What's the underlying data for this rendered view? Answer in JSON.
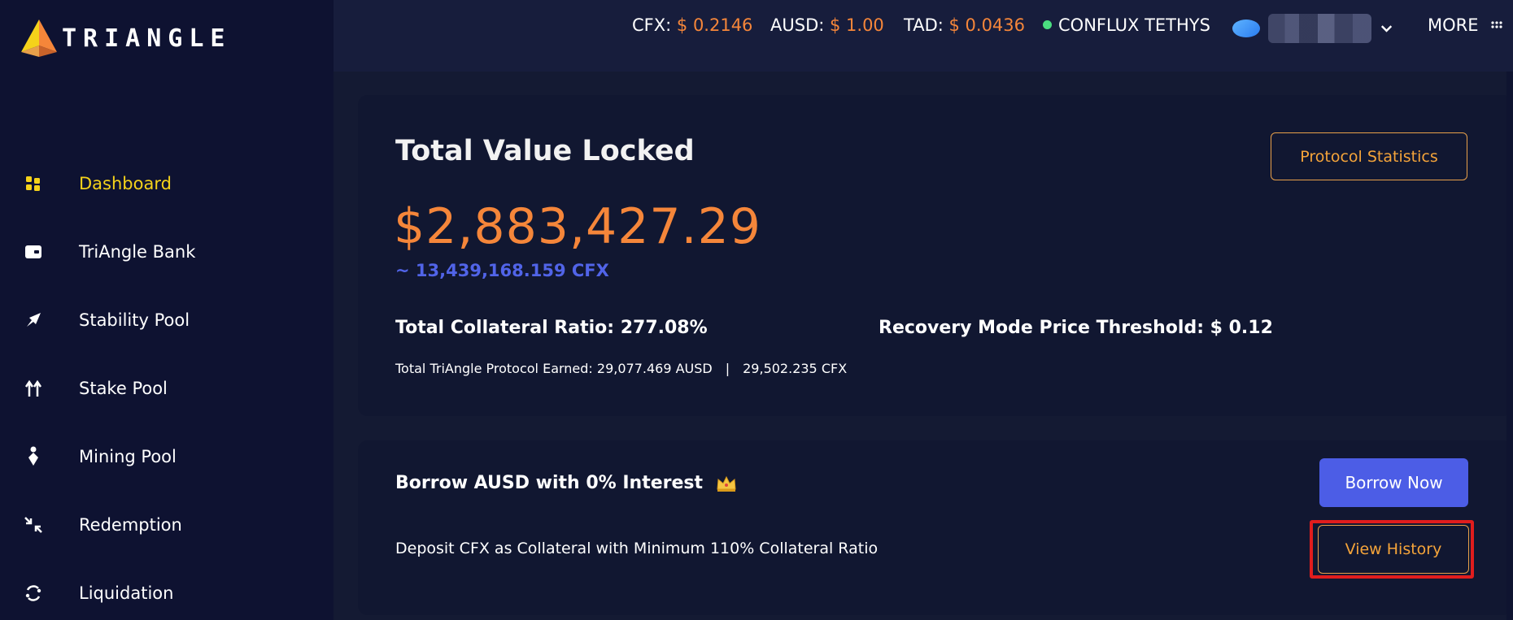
{
  "brand": {
    "name": "TRIANGLE",
    "accent": "#f5a43a"
  },
  "sidebar": {
    "items": [
      {
        "label": "Dashboard",
        "icon": "grid-icon",
        "active": true
      },
      {
        "label": "TriAngle Bank",
        "icon": "wallet-icon",
        "active": false
      },
      {
        "label": "Stability Pool",
        "icon": "rocket-icon",
        "active": false
      },
      {
        "label": "Stake Pool",
        "icon": "arrows-up-icon",
        "active": false
      },
      {
        "label": "Mining Pool",
        "icon": "miner-icon",
        "active": false
      },
      {
        "label": "Redemption",
        "icon": "collapse-arrows-icon",
        "active": false
      },
      {
        "label": "Liquidation",
        "icon": "cycle-icon",
        "active": false
      }
    ]
  },
  "topbar": {
    "prices": [
      {
        "label": "CFX:",
        "value": "$ 0.2146"
      },
      {
        "label": "AUSD:",
        "value": "$ 1.00"
      },
      {
        "label": "TAD:",
        "value": "$ 0.0436"
      }
    ],
    "network": "CONFLUX TETHYS",
    "more_label": "MORE"
  },
  "tvl": {
    "title": "Total Value Locked",
    "value": "$2,883,427.29",
    "cfx_equivalent": "~ 13,439,168.159 CFX",
    "collateral_ratio": "Total Collateral Ratio: 277.08%",
    "recovery_threshold": "Recovery Mode Price Threshold: $ 0.12",
    "earned_label": "Total TriAngle Protocol Earned: 29,077.469 AUSD",
    "earned_separator": "|",
    "earned_cfx": "29,502.235 CFX",
    "stats_button": "Protocol Statistics"
  },
  "borrow": {
    "title": "Borrow AUSD with 0% Interest",
    "description": "Deposit CFX as Collateral with Minimum 110% Collateral Ratio",
    "borrow_button": "Borrow Now",
    "history_button": "View History"
  }
}
